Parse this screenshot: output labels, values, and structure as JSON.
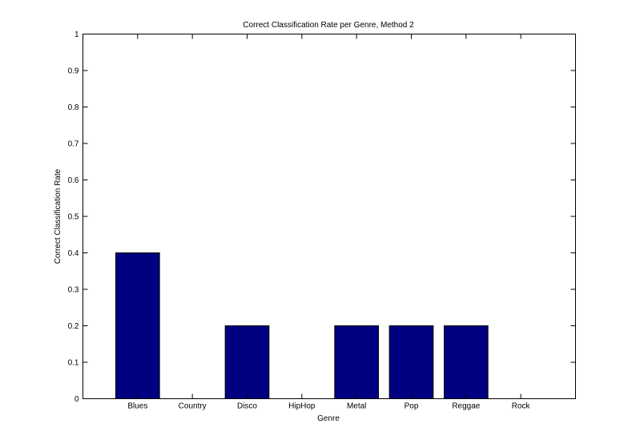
{
  "chart_data": {
    "type": "bar",
    "title": "Correct Classification Rate per Genre, Method 2",
    "xlabel": "Genre",
    "ylabel": "Correct Classification Rate",
    "categories": [
      "Blues",
      "Country",
      "Disco",
      "HipHop",
      "Metal",
      "Pop",
      "Reggae",
      "Rock"
    ],
    "values": [
      0.4,
      0,
      0.2,
      0,
      0.2,
      0.2,
      0.2,
      0
    ],
    "ylim": [
      0,
      1
    ],
    "yticks": [
      "0",
      "0.1",
      "0.2",
      "0.3",
      "0.4",
      "0.5",
      "0.6",
      "0.7",
      "0.8",
      "0.9",
      "1"
    ],
    "xlim": [
      0,
      9
    ],
    "grid": false,
    "legend": "none",
    "bar_color": "#000080",
    "bar_edge_color": "#000000"
  }
}
